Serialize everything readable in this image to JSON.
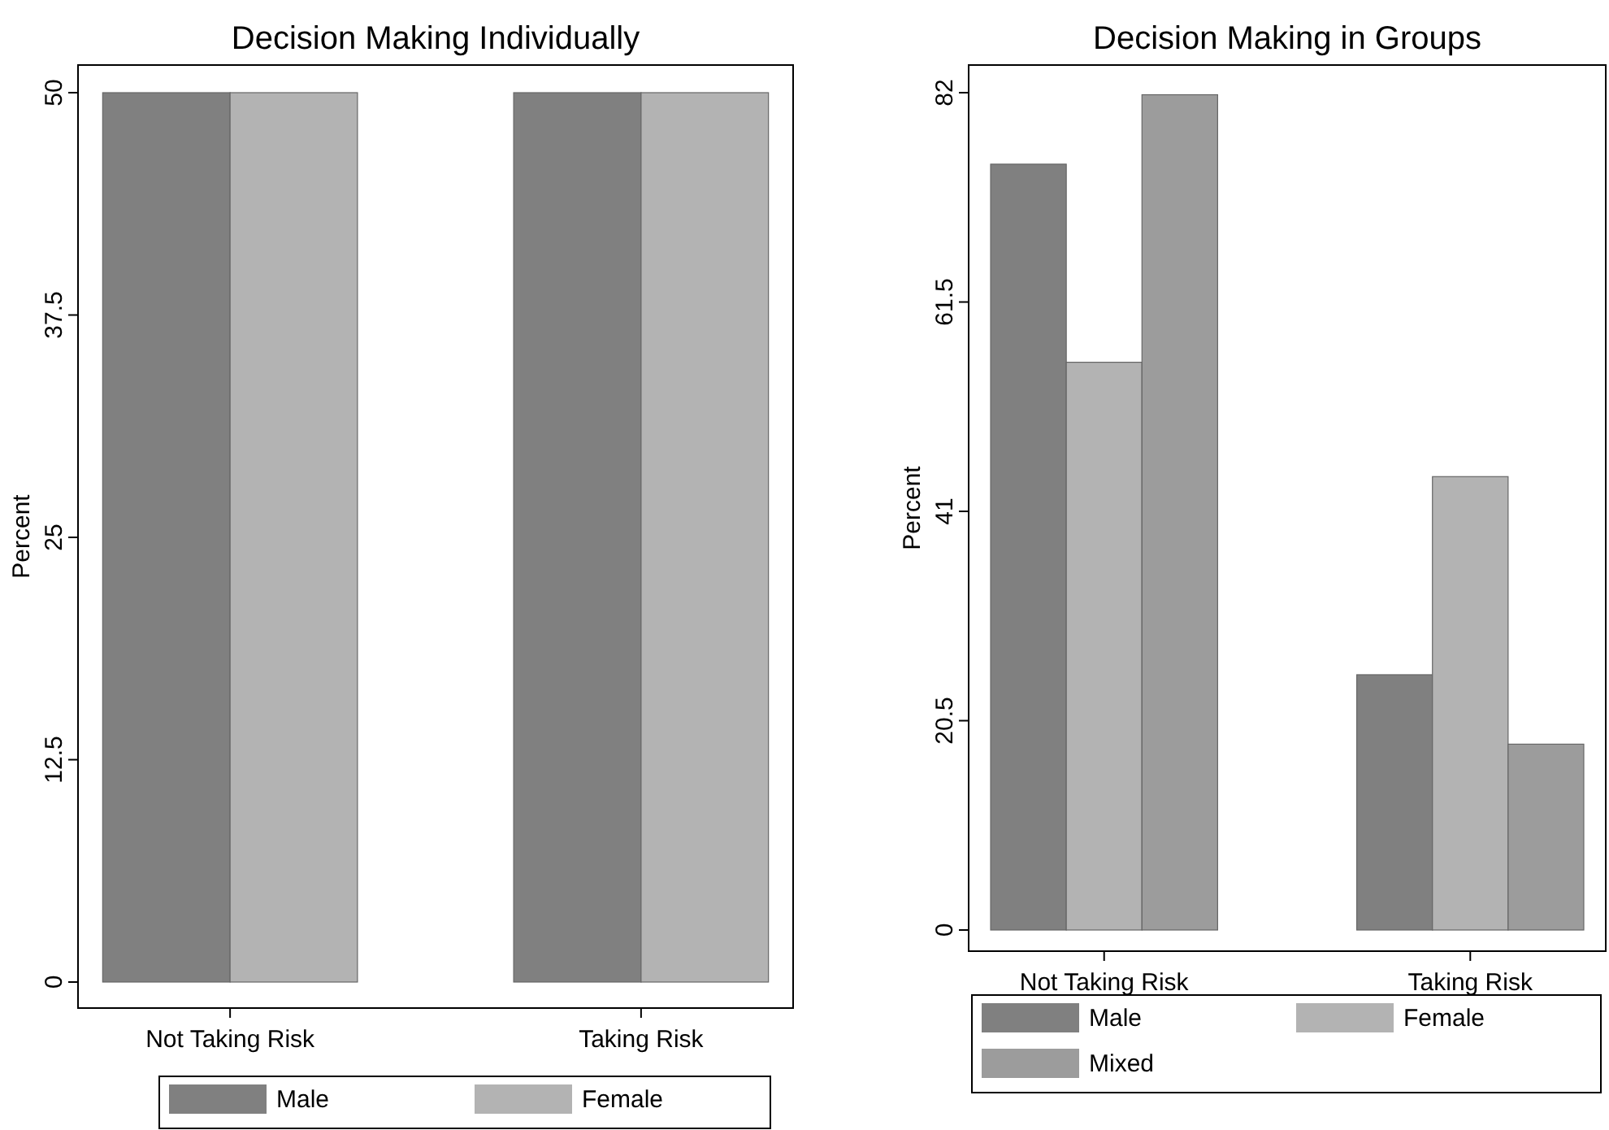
{
  "chart_data": [
    {
      "type": "bar",
      "title": "Decision Making Individually",
      "ylabel": "Percent",
      "categories": [
        "Not Taking Risk",
        "Taking Risk"
      ],
      "series": [
        {
          "name": "Male",
          "color": "#808080",
          "values": [
            50,
            50
          ]
        },
        {
          "name": "Female",
          "color": "#b3b3b3",
          "values": [
            50,
            50
          ]
        }
      ],
      "ylim": [
        0,
        50
      ],
      "yticks": [
        0,
        12.5,
        25,
        37.5,
        50
      ],
      "grid": false,
      "legend": "bottom"
    },
    {
      "type": "bar",
      "title": "Decision Making in Groups",
      "ylabel": "Percent",
      "categories": [
        "Not Taking Risk",
        "Taking Risk"
      ],
      "series": [
        {
          "name": "Male",
          "color": "#808080",
          "values": [
            75,
            25
          ]
        },
        {
          "name": "Female",
          "color": "#b3b3b3",
          "values": [
            55.6,
            44.4
          ]
        },
        {
          "name": "Mixed",
          "color": "#9c9c9c",
          "values": [
            81.8,
            18.2
          ]
        }
      ],
      "ylim": [
        0,
        82
      ],
      "yticks": [
        0,
        20.5,
        41,
        61.5,
        82
      ],
      "grid": false,
      "legend": "bottom"
    }
  ]
}
